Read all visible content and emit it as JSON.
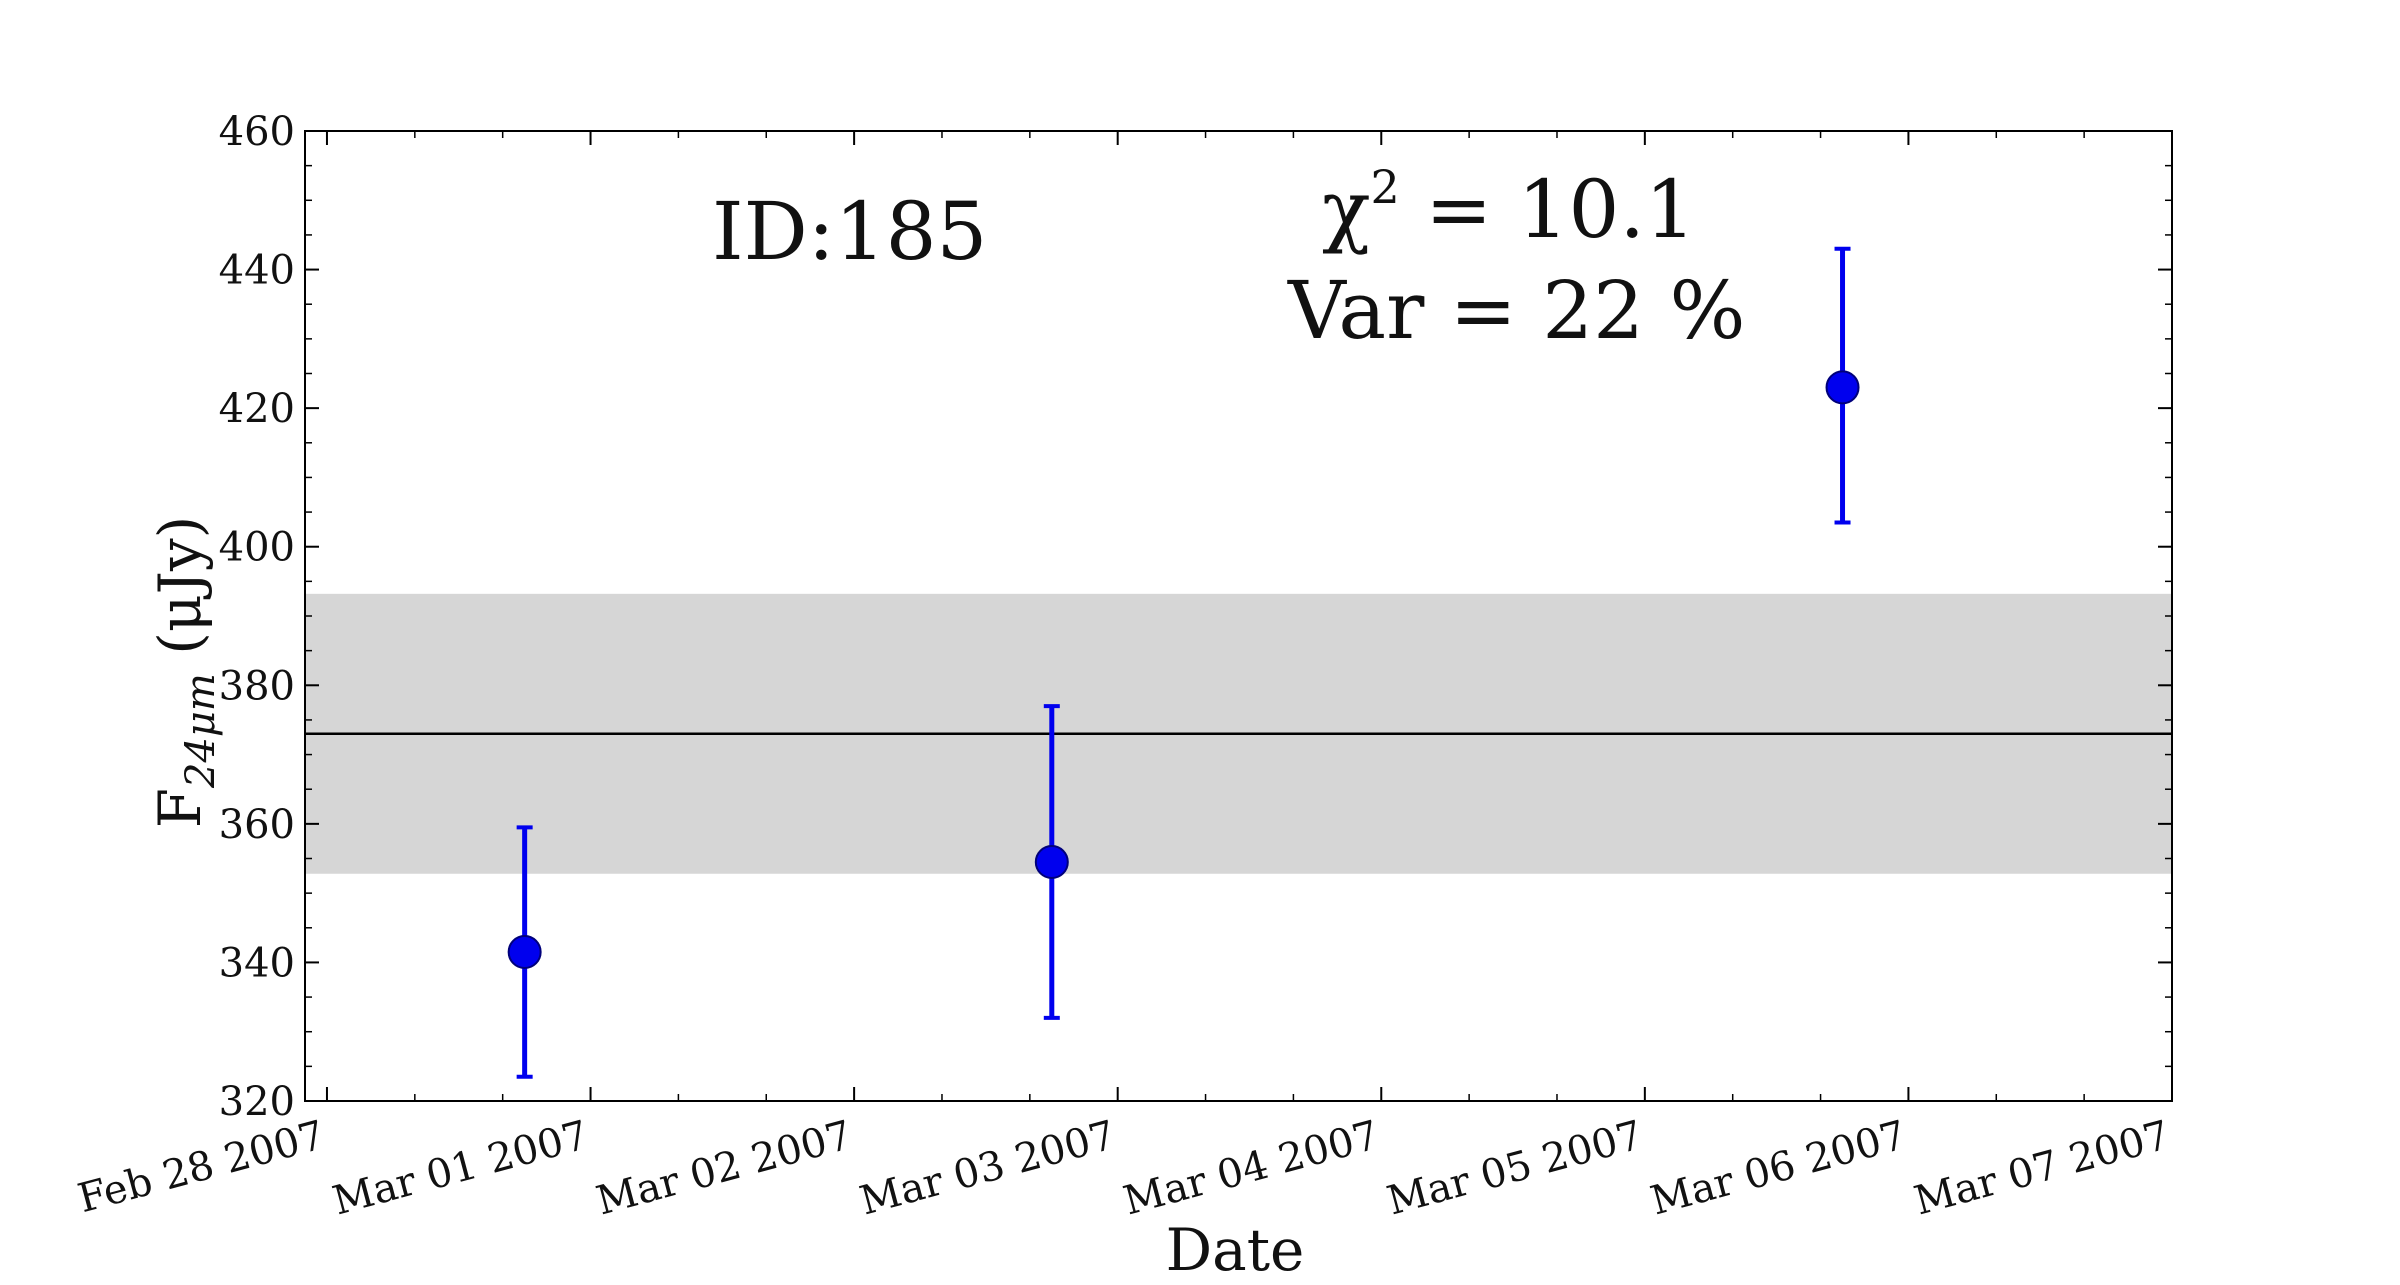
{
  "chart_data": {
    "type": "scatter",
    "xlabel": "Date",
    "ylabel": "F24μm (μJy)",
    "ylabel_parts": {
      "main": "F",
      "subscript": "24μm",
      "unit": " (μJy)"
    },
    "x_axis": {
      "type": "date",
      "range": [
        "2007-02-27T22:00",
        "2007-03-07T00:00"
      ],
      "ticks": [
        {
          "date": "2007-02-28",
          "label": "Feb 28 2007"
        },
        {
          "date": "2007-03-01",
          "label": "Mar 01 2007"
        },
        {
          "date": "2007-03-02",
          "label": "Mar 02 2007"
        },
        {
          "date": "2007-03-03",
          "label": "Mar 03 2007"
        },
        {
          "date": "2007-03-04",
          "label": "Mar 04 2007"
        },
        {
          "date": "2007-03-05",
          "label": "Mar 05 2007"
        },
        {
          "date": "2007-03-06",
          "label": "Mar 06 2007"
        },
        {
          "date": "2007-03-07",
          "label": "Mar 07 2007"
        }
      ],
      "minor_ticks_per_major": 2
    },
    "y_axis": {
      "range": [
        320,
        460
      ],
      "ticks": [
        320,
        340,
        360,
        380,
        400,
        420,
        440,
        460
      ],
      "minor_tick_step": 5
    },
    "series": [
      {
        "color": "#0000ee",
        "points": [
          {
            "x": "2007-02-28T18:00",
            "y": 341.5,
            "yerr_low": 323.5,
            "yerr_high": 359.5
          },
          {
            "x": "2007-03-02T18:00",
            "y": 354.5,
            "yerr_low": 332,
            "yerr_high": 377
          },
          {
            "x": "2007-03-05T18:00",
            "y": 423,
            "yerr_low": 403.5,
            "yerr_high": 443
          }
        ]
      }
    ],
    "mean_line": {
      "y": 373,
      "color": "#000000"
    },
    "band": {
      "y_low": 352.8,
      "y_high": 393.2,
      "color": "#d6d6d6"
    },
    "annotations": {
      "id_label": "ID:185",
      "chi_symbol": "χ",
      "chi_exponent": "2",
      "chi_value": " = 10.1",
      "var_label": "Var = 22 %"
    }
  }
}
